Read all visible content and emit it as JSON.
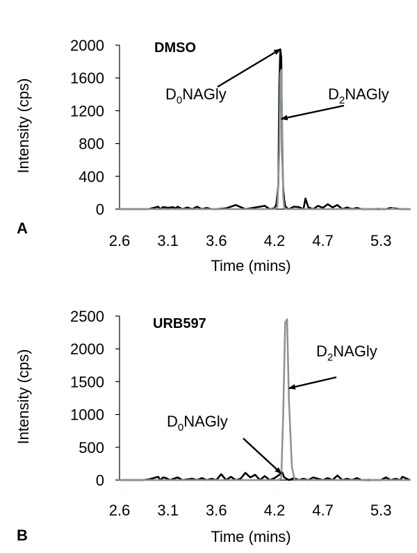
{
  "chart_data": [
    {
      "panel_label": "A",
      "type": "line",
      "title": "DMSO",
      "xlabel": "Time (mins)",
      "ylabel": "Intensity (cps)",
      "xlim": [
        2.6,
        5.6
      ],
      "ylim": [
        0,
        2000
      ],
      "x_ticks": [
        2.6,
        3.1,
        3.6,
        4.2,
        4.7,
        5.3
      ],
      "y_ticks": [
        0,
        400,
        800,
        1200,
        1600,
        2000
      ],
      "grid": false,
      "colors": {
        "D0NAGly": "#000000",
        "D2NAGly": "#8c9497"
      },
      "series": [
        {
          "key": "D0NAGly",
          "x": [
            2.6,
            2.9,
            3.0,
            3.02,
            3.05,
            3.08,
            3.1,
            3.15,
            3.18,
            3.2,
            3.25,
            3.3,
            3.35,
            3.4,
            3.45,
            3.5,
            3.55,
            3.6,
            3.7,
            3.8,
            3.9,
            4.0,
            4.1,
            4.15,
            4.2,
            4.22,
            4.24,
            4.25,
            4.26,
            4.27,
            4.28,
            4.29,
            4.3,
            4.31,
            4.33,
            4.35,
            4.4,
            4.45,
            4.5,
            4.52,
            4.55,
            4.6,
            4.65,
            4.7,
            4.75,
            4.8,
            4.85,
            4.9,
            4.95,
            5.0,
            5.05,
            5.1,
            5.2,
            5.3,
            5.35,
            5.4,
            5.5,
            5.6
          ],
          "y": [
            0,
            0,
            30,
            0,
            25,
            20,
            15,
            25,
            10,
            30,
            0,
            20,
            0,
            30,
            0,
            15,
            0,
            0,
            10,
            50,
            0,
            20,
            40,
            0,
            10,
            60,
            300,
            1500,
            1950,
            1850,
            700,
            250,
            120,
            40,
            10,
            0,
            30,
            25,
            0,
            130,
            20,
            0,
            40,
            15,
            60,
            20,
            50,
            0,
            20,
            0,
            15,
            0,
            0,
            0,
            0,
            15,
            0,
            0
          ]
        },
        {
          "key": "D2NAGly",
          "x": [
            2.6,
            4.0,
            4.2,
            4.23,
            4.25,
            4.26,
            4.27,
            4.28,
            4.29,
            4.3,
            4.32,
            4.35,
            4.6,
            5.25,
            5.27,
            5.29,
            5.4,
            5.42,
            5.44,
            5.6
          ],
          "y": [
            0,
            0,
            0,
            30,
            700,
            1650,
            1700,
            1000,
            150,
            20,
            0,
            0,
            0,
            0,
            8,
            0,
            0,
            10,
            0,
            0
          ]
        }
      ],
      "annotations": [
        {
          "prefix": "D",
          "subscript": "0",
          "suffix": "NAGly",
          "points_to": {
            "x": 4.26,
            "y": 1950
          }
        },
        {
          "prefix": "D",
          "subscript": "2",
          "suffix": "NAGly",
          "points_to": {
            "x": 4.27,
            "y": 1100
          }
        }
      ]
    },
    {
      "panel_label": "B",
      "type": "line",
      "title": "URB597",
      "xlabel": "Time (mins)",
      "ylabel": "Intensity (cps)",
      "xlim": [
        2.6,
        5.6
      ],
      "ylim": [
        0,
        2500
      ],
      "x_ticks": [
        2.6,
        3.1,
        3.6,
        4.2,
        4.7,
        5.3
      ],
      "y_ticks": [
        0,
        500,
        1000,
        1500,
        2000,
        2500
      ],
      "grid": false,
      "colors": {
        "D0NAGly": "#000000",
        "D2NAGly": "#8c9497"
      },
      "series": [
        {
          "key": "D0NAGly",
          "x": [
            2.6,
            2.85,
            2.9,
            3.0,
            3.02,
            3.05,
            3.08,
            3.12,
            3.2,
            3.25,
            3.35,
            3.4,
            3.45,
            3.5,
            3.55,
            3.6,
            3.65,
            3.7,
            3.75,
            3.8,
            3.85,
            3.9,
            3.95,
            4.0,
            4.05,
            4.1,
            4.15,
            4.2,
            4.25,
            4.28,
            4.3,
            4.35,
            4.4,
            4.45,
            4.5,
            4.55,
            4.6,
            4.65,
            4.7,
            4.75,
            4.8,
            4.85,
            4.9,
            4.95,
            5.0,
            5.05,
            5.1,
            5.15,
            5.2,
            5.3,
            5.35,
            5.4,
            5.45,
            5.5,
            5.52,
            5.6
          ],
          "y": [
            0,
            0,
            10,
            50,
            0,
            40,
            30,
            0,
            40,
            0,
            20,
            0,
            30,
            0,
            20,
            0,
            90,
            0,
            50,
            0,
            20,
            110,
            40,
            80,
            0,
            60,
            0,
            30,
            80,
            120,
            40,
            0,
            30,
            0,
            20,
            0,
            40,
            20,
            0,
            30,
            0,
            70,
            0,
            20,
            0,
            30,
            0,
            0,
            0,
            0,
            40,
            0,
            20,
            0,
            50,
            0
          ]
        },
        {
          "key": "D2NAGly",
          "x": [
            2.6,
            4.24,
            4.27,
            4.29,
            4.31,
            4.33,
            4.35,
            4.38,
            4.41,
            4.5,
            5.0,
            5.15,
            5.17,
            5.19,
            5.25,
            5.6
          ],
          "y": [
            0,
            0,
            30,
            1000,
            2400,
            2450,
            1200,
            200,
            0,
            0,
            0,
            0,
            10,
            0,
            0,
            0
          ]
        }
      ],
      "annotations": [
        {
          "prefix": "D",
          "subscript": "2",
          "suffix": "NAGly",
          "points_to": {
            "x": 4.35,
            "y": 1400
          }
        },
        {
          "prefix": "D",
          "subscript": "0",
          "suffix": "NAGly",
          "points_to": {
            "x": 4.27,
            "y": 100
          }
        }
      ]
    }
  ]
}
